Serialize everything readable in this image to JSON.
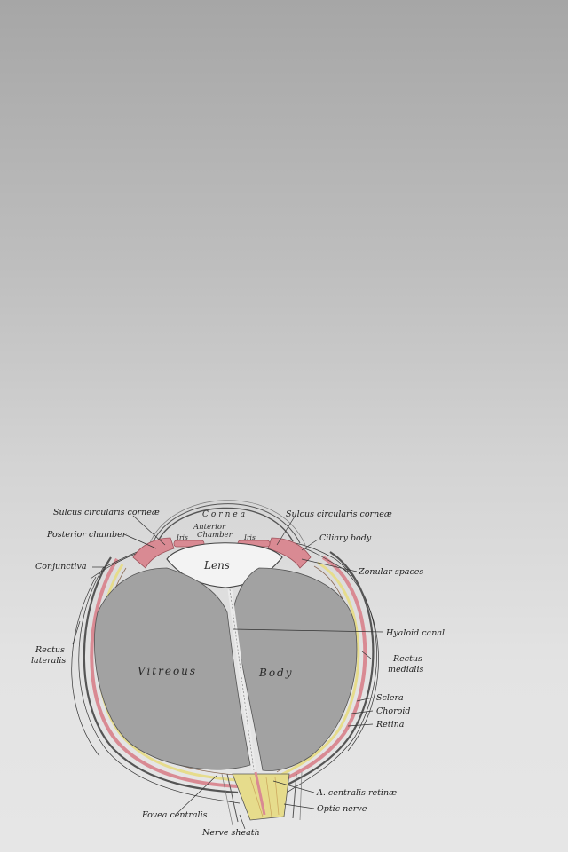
{
  "labels": {
    "sulcus_left": "Sulcus circularis corneæ",
    "sulcus_right": "Sulcus circularis corneæ",
    "posterior_chamber": "Posterior chamber",
    "conjunctiva": "Conjunctiva",
    "rectus_lateralis_1": "Rectus",
    "rectus_lateralis_2": "lateralis",
    "ciliary_body": "Ciliary body",
    "zonular_spaces": "Zonular spaces",
    "hyaloid_canal": "Hyaloid canal",
    "rectus_medialis_1": "Rectus",
    "rectus_medialis_2": "medialis",
    "sclera": "Sclera",
    "choroid": "Choroid",
    "retina": "Retina",
    "a_centralis": "A. centralis retinæ",
    "optic_nerve": "Optic nerve",
    "fovea_centralis": "Fovea centralis",
    "nerve_sheath": "Nerve sheath"
  },
  "inner_labels": {
    "cornea": "Cornea",
    "anterior": "Anterior",
    "chamber": "Chamber",
    "iris_left": "Iris",
    "iris_right": "Iris",
    "lens": "Lens",
    "vitreous": "Vitreous",
    "body": "Body"
  },
  "colors": {
    "vitreous": "#a2a2a2",
    "choroid": "#d98a93",
    "retina": "#e6dc8c",
    "sclera_line": "#444444"
  }
}
